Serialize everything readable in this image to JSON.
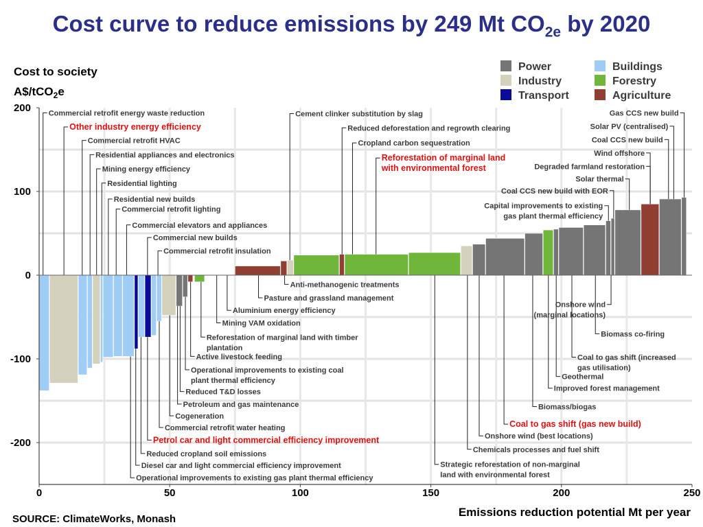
{
  "title": {
    "main": "Cost curve to reduce emissions by 249 Mt CO",
    "sub": "2e",
    "tail": " by 2020"
  },
  "y_label_line1": "Cost to society",
  "y_label_line2_a": "A$/tCO",
  "y_label_line2_sub": "2",
  "y_label_line2_b": "e",
  "x_label": "Emissions reduction potential Mt per year",
  "source": "SOURCE: ClimateWorks, Monash",
  "colors": {
    "Power": "#757575",
    "Industry": "#d4d2bd",
    "Transport": "#0b0b99",
    "Buildings": "#9fcdf6",
    "Forestry": "#6fb63b",
    "Agriculture": "#913e33"
  },
  "legend": [
    {
      "name": "Power",
      "color": "#757575"
    },
    {
      "name": "Industry",
      "color": "#d4d2bd"
    },
    {
      "name": "Transport",
      "color": "#0b0b99"
    },
    {
      "name": "Buildings",
      "color": "#9fcdf6"
    },
    {
      "name": "Forestry",
      "color": "#6fb63b"
    },
    {
      "name": "Agriculture",
      "color": "#913e33"
    }
  ],
  "chart_data": {
    "type": "bar",
    "subtype": "marginal abatement cost curve (variable-width bars)",
    "xlabel": "Emissions reduction potential Mt per year",
    "ylabel": "Cost to society A$/tCO2e",
    "xlim": [
      0,
      250
    ],
    "ylim": [
      -250,
      200
    ],
    "x_ticks": [
      0,
      50,
      100,
      150,
      200,
      250
    ],
    "y_ticks": [
      200,
      100,
      0,
      -100,
      -200
    ],
    "grid": true,
    "legend_position": "top-right",
    "bars": [
      {
        "x0": 0,
        "x1": 4,
        "value": -138,
        "sector": "Buildings"
      },
      {
        "x0": 4,
        "x1": 15,
        "value": -129,
        "sector": "Industry"
      },
      {
        "x0": 15,
        "x1": 18.5,
        "value": -119,
        "sector": "Buildings"
      },
      {
        "x0": 18.5,
        "x1": 20.5,
        "value": -111,
        "sector": "Buildings"
      },
      {
        "x0": 20.5,
        "x1": 23.5,
        "value": -106,
        "sector": "Industry"
      },
      {
        "x0": 23.5,
        "x1": 24.5,
        "value": -104,
        "sector": "Buildings"
      },
      {
        "x0": 24.5,
        "x1": 28.5,
        "value": -98,
        "sector": "Buildings"
      },
      {
        "x0": 28.5,
        "x1": 32,
        "value": -97,
        "sector": "Buildings"
      },
      {
        "x0": 32,
        "x1": 36.5,
        "value": -97,
        "sector": "Buildings"
      },
      {
        "x0": 36.5,
        "x1": 38,
        "value": -88,
        "sector": "Transport"
      },
      {
        "x0": 38,
        "x1": 40.5,
        "value": -74,
        "sector": "Buildings"
      },
      {
        "x0": 40.5,
        "x1": 43,
        "value": -74,
        "sector": "Transport"
      },
      {
        "x0": 43,
        "x1": 45,
        "value": -72,
        "sector": "Buildings"
      },
      {
        "x0": 45,
        "x1": 47,
        "value": -55,
        "sector": "Buildings"
      },
      {
        "x0": 47,
        "x1": 52.5,
        "value": -48,
        "sector": "Industry"
      },
      {
        "x0": 52.5,
        "x1": 55,
        "value": -37,
        "sector": "Power"
      },
      {
        "x0": 55,
        "x1": 57,
        "value": -26,
        "sector": "Power"
      },
      {
        "x0": 57,
        "x1": 59,
        "value": -8,
        "sector": "Agriculture"
      },
      {
        "x0": 59.5,
        "x1": 63.5,
        "value": -8,
        "sector": "Forestry"
      },
      {
        "x0": 75,
        "x1": 92.5,
        "value": 11,
        "sector": "Agriculture"
      },
      {
        "x0": 92.5,
        "x1": 95,
        "value": 17,
        "sector": "Agriculture"
      },
      {
        "x0": 95,
        "x1": 97.5,
        "value": 18,
        "sector": "Industry"
      },
      {
        "x0": 97.5,
        "x1": 115,
        "value": 24,
        "sector": "Forestry"
      },
      {
        "x0": 115,
        "x1": 117,
        "value": 25,
        "sector": "Agriculture"
      },
      {
        "x0": 117,
        "x1": 141.5,
        "value": 25,
        "sector": "Forestry"
      },
      {
        "x0": 141.5,
        "x1": 161.5,
        "value": 27,
        "sector": "Forestry"
      },
      {
        "x0": 161.5,
        "x1": 166,
        "value": 35,
        "sector": "Industry"
      },
      {
        "x0": 166,
        "x1": 171,
        "value": 37,
        "sector": "Power"
      },
      {
        "x0": 171,
        "x1": 186,
        "value": 44,
        "sector": "Power"
      },
      {
        "x0": 186,
        "x1": 193,
        "value": 50,
        "sector": "Power"
      },
      {
        "x0": 193,
        "x1": 197,
        "value": 54,
        "sector": "Forestry"
      },
      {
        "x0": 197,
        "x1": 199,
        "value": 55,
        "sector": "Power"
      },
      {
        "x0": 199,
        "x1": 208.5,
        "value": 57,
        "sector": "Power"
      },
      {
        "x0": 208.5,
        "x1": 217,
        "value": 60,
        "sector": "Power"
      },
      {
        "x0": 217,
        "x1": 219,
        "value": 65,
        "sector": "Power"
      },
      {
        "x0": 219,
        "x1": 220.5,
        "value": 68,
        "sector": "Power"
      },
      {
        "x0": 220.5,
        "x1": 230.5,
        "value": 78,
        "sector": "Power"
      },
      {
        "x0": 230.5,
        "x1": 237.5,
        "value": 85,
        "sector": "Agriculture"
      },
      {
        "x0": 237.5,
        "x1": 246,
        "value": 91,
        "sector": "Power"
      },
      {
        "x0": 246,
        "x1": 248,
        "value": 93,
        "sector": "Power"
      }
    ],
    "annotations": [
      {
        "text": "Commercial retrofit energy waste reduction",
        "x": 1.5,
        "y": 194,
        "highlight": false
      },
      {
        "text": "Other industry energy efficiency",
        "x": 9.5,
        "y": 177,
        "highlight": true
      },
      {
        "text": "Commercial retrofit HVAC",
        "x": 16.5,
        "y": 161,
        "highlight": false
      },
      {
        "text": "Residential appliances and electronics",
        "x": 19.5,
        "y": 144,
        "highlight": false
      },
      {
        "text": "Mining energy efficiency",
        "x": 22,
        "y": 127,
        "highlight": false
      },
      {
        "text": "Residential lighting",
        "x": 24,
        "y": 110,
        "highlight": false
      },
      {
        "text": "Residential new builds",
        "x": 26.5,
        "y": 91,
        "highlight": false
      },
      {
        "text": "Commercial retrofit lighting",
        "x": 29.5,
        "y": 79,
        "highlight": false
      },
      {
        "text": "Commercial elevators and appliances",
        "x": 33.5,
        "y": 60,
        "highlight": false
      },
      {
        "text": "Commercial new builds",
        "x": 41.5,
        "y": 45,
        "highlight": false
      },
      {
        "text": "Commercial retrofit insulation",
        "x": 45.5,
        "y": 29,
        "highlight": false
      },
      {
        "text": "Cement clinker substitution by slag",
        "x": 96,
        "y": 193,
        "highlight": false
      },
      {
        "text": "Reduced deforestation and regrowth clearing",
        "x": 116,
        "y": 176,
        "highlight": false
      },
      {
        "text": "Cropland carbon sequestration",
        "x": 120,
        "y": 158,
        "highlight": false
      },
      {
        "text": "Reforestation of marginal land|with environmental forest",
        "x": 129,
        "y": 140,
        "highlight": true
      },
      {
        "text": "Gas CCS new build",
        "x": 247,
        "y": 194,
        "highlight": false
      },
      {
        "text": "Solar PV (centralised)",
        "x": 243,
        "y": 178,
        "highlight": false
      },
      {
        "text": "Coal CCS new build",
        "x": 241,
        "y": 162,
        "highlight": false
      },
      {
        "text": "Wind offshore",
        "x": 234,
        "y": 146,
        "highlight": false
      },
      {
        "text": "Degraded farmland restoration",
        "x": 234,
        "y": 130,
        "highlight": false
      },
      {
        "text": "Solar thermal",
        "x": 226,
        "y": 115,
        "highlight": false
      },
      {
        "text": "Coal CCS new build with EOR",
        "x": 220,
        "y": 101,
        "highlight": false
      },
      {
        "text": "Capital improvements to existing|gas plant thermal efficiency",
        "x": 218,
        "y": 83,
        "highlight": false
      },
      {
        "text": "Anti-methanogenic treatments",
        "x": 94,
        "y": -11,
        "highlight": false
      },
      {
        "text": "Pasture and grassland management",
        "x": 84,
        "y": -27,
        "highlight": false
      },
      {
        "text": "Aluminium energy efficiency",
        "x": 72,
        "y": -42,
        "highlight": false
      },
      {
        "text": "Mining VAM oxidation",
        "x": 68,
        "y": -57,
        "highlight": false
      },
      {
        "text": "Reforestation of marginal land with timber|plantation",
        "x": 62,
        "y": -74,
        "highlight": false
      },
      {
        "text": "Active livestock feeding",
        "x": 58,
        "y": -97,
        "highlight": false
      },
      {
        "text": "Operational improvements to existing coal|plant thermal efficiency",
        "x": 56,
        "y": -113,
        "highlight": false
      },
      {
        "text": "Reduced T&D losses",
        "x": 54,
        "y": -139,
        "highlight": false
      },
      {
        "text": "Petroleum and gas maintenance",
        "x": 53,
        "y": -154,
        "highlight": false
      },
      {
        "text": "Cogeneration",
        "x": 50,
        "y": -168,
        "highlight": false
      },
      {
        "text": "Commercial retrofit water heating",
        "x": 46,
        "y": -182,
        "highlight": false
      },
      {
        "text": "Petrol car and light commercial efficiency improvement",
        "x": 41.5,
        "y": -197,
        "highlight": true
      },
      {
        "text": "Reduced cropland soil emissions",
        "x": 39,
        "y": -213,
        "highlight": false
      },
      {
        "text": "Diesel car and light commercial efficiency improvement",
        "x": 37,
        "y": -227,
        "highlight": false
      },
      {
        "text": "Operational improvements to existing gas plant thermal efficiency",
        "x": 35,
        "y": -242,
        "highlight": false
      },
      {
        "text": "Onshore wind|(marginal locations)",
        "x": 219,
        "y": -35,
        "highlight": false
      },
      {
        "text": "Biomass co-firing",
        "x": 213,
        "y": -70,
        "highlight": false
      },
      {
        "text": "Coal to gas shift (increased|gas utilisation)",
        "x": 204,
        "y": -98,
        "highlight": false
      },
      {
        "text": "Geothermal",
        "x": 198,
        "y": -121,
        "highlight": false
      },
      {
        "text": "Improved forest management",
        "x": 195,
        "y": -135,
        "highlight": false
      },
      {
        "text": "Biomass/biogas",
        "x": 189,
        "y": -157,
        "highlight": false
      },
      {
        "text": "Coal to gas shift (gas new build)",
        "x": 178,
        "y": -178,
        "highlight": true
      },
      {
        "text": "Onshore wind (best locations)",
        "x": 168.5,
        "y": -192,
        "highlight": false
      },
      {
        "text": "Chemicals processes and fuel shift",
        "x": 164,
        "y": -208,
        "highlight": false
      },
      {
        "text": "Strategic reforestation of non-marginal|land with environmental forest",
        "x": 151.5,
        "y": -226,
        "highlight": false
      }
    ]
  }
}
